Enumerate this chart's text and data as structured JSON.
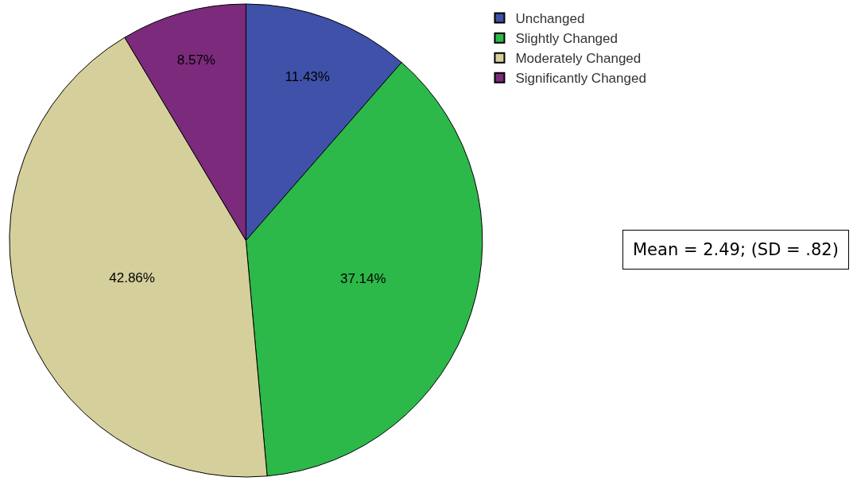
{
  "chart_data": {
    "type": "pie",
    "categories": [
      "Unchanged",
      "Slightly Changed",
      "Moderately Changed",
      "Significantly Changed"
    ],
    "values": [
      11.43,
      37.14,
      42.86,
      8.57
    ],
    "value_labels": [
      "11.43%",
      "37.14%",
      "42.86%",
      "8.57%"
    ],
    "colors": [
      "#3f51a8",
      "#2db84a",
      "#d5cf9b",
      "#7b2a7c"
    ],
    "legend": "top right",
    "annotations": [
      "Mean = 2.49; (SD = .82)"
    ]
  }
}
